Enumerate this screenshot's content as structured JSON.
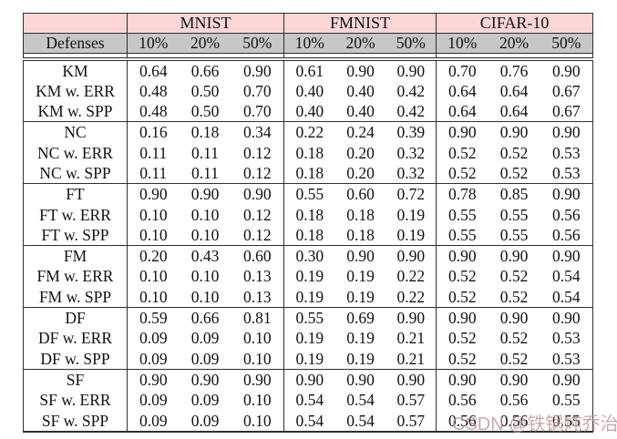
{
  "table": {
    "corner_label": "",
    "defense_header": "Defenses",
    "dataset_groups": [
      "MNIST",
      "FMNIST",
      "CIFAR-10"
    ],
    "poison_rates": [
      "10%",
      "20%",
      "50%"
    ],
    "rows": [
      {
        "defense": "KM",
        "values": [
          "0.64",
          "0.66",
          "0.90",
          "0.61",
          "0.90",
          "0.90",
          "0.70",
          "0.76",
          "0.90"
        ]
      },
      {
        "defense": "KM w. ERR",
        "values": [
          "0.48",
          "0.50",
          "0.70",
          "0.40",
          "0.40",
          "0.42",
          "0.64",
          "0.64",
          "0.67"
        ]
      },
      {
        "defense": "KM w. SPP",
        "values": [
          "0.48",
          "0.50",
          "0.70",
          "0.40",
          "0.40",
          "0.42",
          "0.64",
          "0.64",
          "0.67"
        ]
      },
      {
        "defense": "NC",
        "values": [
          "0.16",
          "0.18",
          "0.34",
          "0.22",
          "0.24",
          "0.39",
          "0.90",
          "0.90",
          "0.90"
        ]
      },
      {
        "defense": "NC w. ERR",
        "values": [
          "0.11",
          "0.11",
          "0.12",
          "0.18",
          "0.20",
          "0.32",
          "0.52",
          "0.52",
          "0.53"
        ]
      },
      {
        "defense": "NC w. SPP",
        "values": [
          "0.11",
          "0.11",
          "0.12",
          "0.18",
          "0.20",
          "0.32",
          "0.52",
          "0.52",
          "0.53"
        ]
      },
      {
        "defense": "FT",
        "values": [
          "0.90",
          "0.90",
          "0.90",
          "0.55",
          "0.60",
          "0.72",
          "0.78",
          "0.85",
          "0.90"
        ]
      },
      {
        "defense": "FT w. ERR",
        "values": [
          "0.10",
          "0.10",
          "0.12",
          "0.18",
          "0.18",
          "0.19",
          "0.55",
          "0.55",
          "0.56"
        ]
      },
      {
        "defense": "FT w. SPP",
        "values": [
          "0.10",
          "0.10",
          "0.12",
          "0.18",
          "0.18",
          "0.19",
          "0.55",
          "0.55",
          "0.56"
        ]
      },
      {
        "defense": "FM",
        "values": [
          "0.20",
          "0.43",
          "0.60",
          "0.30",
          "0.90",
          "0.90",
          "0.90",
          "0.90",
          "0.90"
        ]
      },
      {
        "defense": "FM w. ERR",
        "values": [
          "0.10",
          "0.10",
          "0.13",
          "0.19",
          "0.19",
          "0.22",
          "0.52",
          "0.52",
          "0.54"
        ]
      },
      {
        "defense": "FM w. SPP",
        "values": [
          "0.10",
          "0.10",
          "0.13",
          "0.19",
          "0.19",
          "0.22",
          "0.52",
          "0.52",
          "0.54"
        ]
      },
      {
        "defense": "DF",
        "values": [
          "0.59",
          "0.66",
          "0.81",
          "0.55",
          "0.69",
          "0.90",
          "0.90",
          "0.90",
          "0.90"
        ]
      },
      {
        "defense": "DF w. ERR",
        "values": [
          "0.09",
          "0.09",
          "0.10",
          "0.19",
          "0.19",
          "0.21",
          "0.52",
          "0.52",
          "0.53"
        ]
      },
      {
        "defense": "DF w. SPP",
        "values": [
          "0.09",
          "0.09",
          "0.10",
          "0.19",
          "0.19",
          "0.21",
          "0.52",
          "0.52",
          "0.53"
        ]
      },
      {
        "defense": "SF",
        "values": [
          "0.90",
          "0.90",
          "0.90",
          "0.90",
          "0.90",
          "0.90",
          "0.90",
          "0.90",
          "0.90"
        ]
      },
      {
        "defense": "SF w. ERR",
        "values": [
          "0.09",
          "0.09",
          "0.10",
          "0.54",
          "0.54",
          "0.57",
          "0.56",
          "0.56",
          "0.55"
        ]
      },
      {
        "defense": "SF w. SPP",
        "values": [
          "0.09",
          "0.09",
          "0.10",
          "0.54",
          "0.54",
          "0.57",
          "0.56",
          "0.56",
          "0.55"
        ]
      }
    ],
    "rows_per_group": 3
  },
  "watermark": {
    "text": "CSDN @铁锅炖乔治"
  },
  "colors": {
    "header_dataset_bg": "#fcd6d6",
    "header_rates_bg": "#c7c7c7",
    "border": "#2f2f2f",
    "text": "#121212",
    "watermark": "#ba9494",
    "background": "#ffffff"
  }
}
